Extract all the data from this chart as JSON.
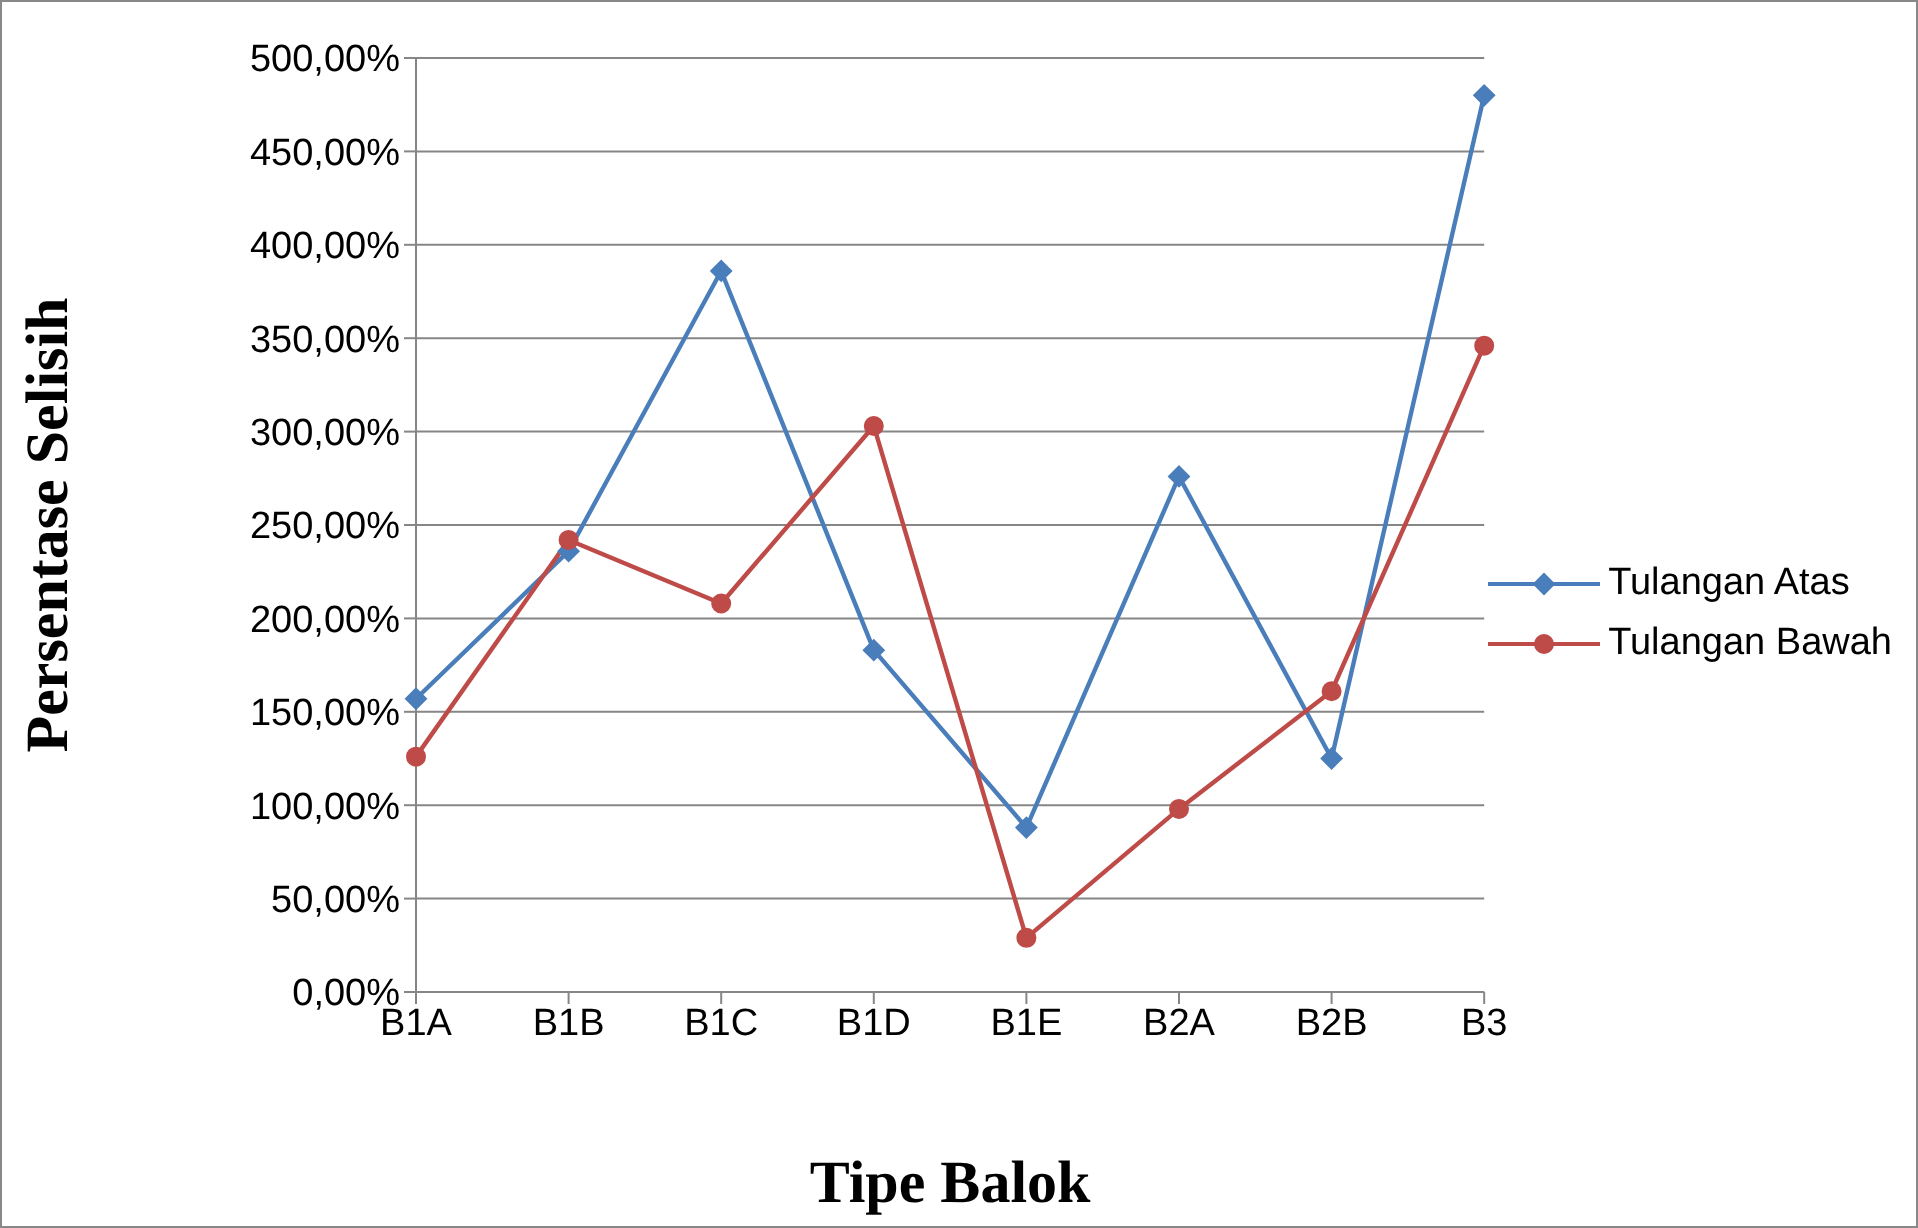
{
  "chart_data": {
    "type": "line",
    "xlabel": "Tipe Balok",
    "ylabel": "Persentase Selisih",
    "categories": [
      "B1A",
      "B1B",
      "B1C",
      "B1D",
      "B1E",
      "B2A",
      "B2B",
      "B3"
    ],
    "series": [
      {
        "name": "Tulangan Atas",
        "color": "#4a7ebb",
        "marker": "diamond",
        "values": [
          157,
          236,
          386,
          183,
          88,
          276,
          125,
          480
        ]
      },
      {
        "name": "Tulangan Bawah",
        "color": "#be4b48",
        "marker": "circle",
        "values": [
          126,
          242,
          208,
          303,
          29,
          98,
          161,
          346
        ]
      }
    ],
    "ylim": [
      0,
      500
    ],
    "yticks": [
      {
        "value": 0,
        "label": "0,00%"
      },
      {
        "value": 50,
        "label": "50,00%"
      },
      {
        "value": 100,
        "label": "100,00%"
      },
      {
        "value": 150,
        "label": "150,00%"
      },
      {
        "value": 200,
        "label": "200,00%"
      },
      {
        "value": 250,
        "label": "250,00%"
      },
      {
        "value": 300,
        "label": "300,00%"
      },
      {
        "value": 350,
        "label": "350,00%"
      },
      {
        "value": 400,
        "label": "400,00%"
      },
      {
        "value": 450,
        "label": "450,00%"
      },
      {
        "value": 500,
        "label": "500,00%"
      }
    ],
    "grid": "y",
    "legend": "right",
    "line_style": "solid"
  }
}
